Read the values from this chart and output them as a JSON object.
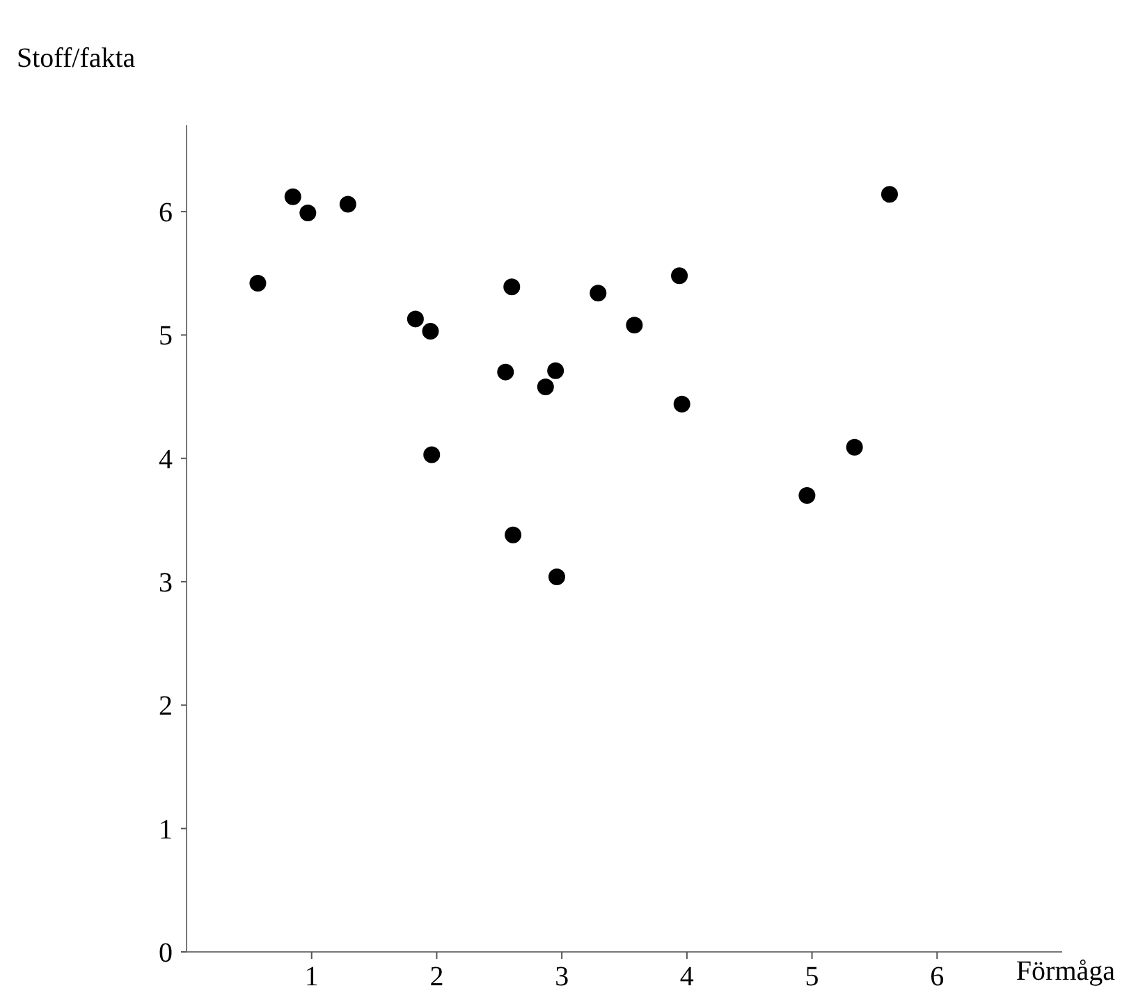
{
  "chart_data": {
    "type": "scatter",
    "xlabel": "Förmåga",
    "ylabel": "Stoff/fakta",
    "x": [
      0.57,
      0.85,
      0.97,
      1.29,
      1.83,
      1.95,
      1.96,
      2.55,
      2.6,
      2.61,
      2.87,
      2.95,
      2.96,
      3.29,
      3.58,
      3.94,
      3.96,
      4.96,
      5.34,
      5.62
    ],
    "values": [
      5.42,
      6.12,
      5.99,
      6.06,
      5.13,
      5.03,
      4.03,
      4.7,
      5.39,
      3.38,
      4.58,
      4.71,
      3.04,
      5.34,
      5.08,
      5.48,
      4.44,
      3.7,
      4.09,
      6.14
    ],
    "color": "#000000",
    "marker": "circle",
    "xlim": [
      0,
      7
    ],
    "ylim": [
      0,
      6.7
    ],
    "xticks": [
      1,
      2,
      3,
      4,
      5,
      6
    ],
    "yticks": [
      0,
      1,
      2,
      3,
      4,
      5,
      6
    ],
    "grid": false
  }
}
